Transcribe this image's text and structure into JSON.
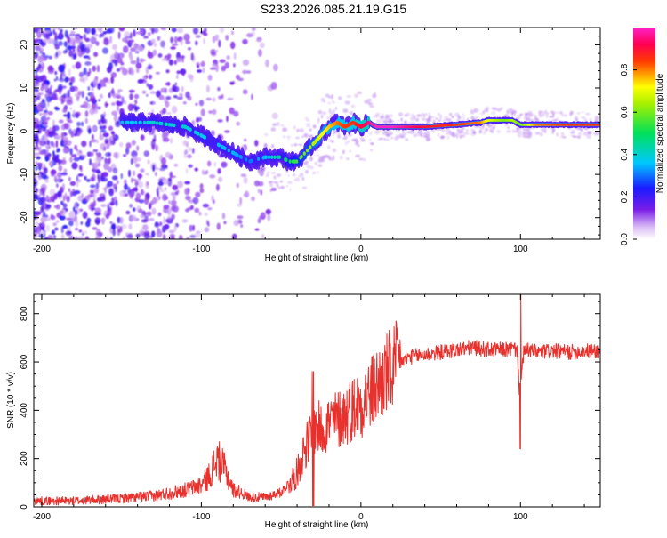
{
  "colors": {
    "snr_line": "#e8302c",
    "frame": "#000000",
    "background": "#ffffff"
  },
  "chart_data": [
    {
      "type": "heatmap",
      "title": "S233.2026.085.21.19.G15",
      "xlabel": "Height of straight line (km)",
      "ylabel": "Frequency (Hz)",
      "xlim": [
        -205,
        150
      ],
      "ylim": [
        -25,
        24
      ],
      "xticks": [
        -200,
        -100,
        0,
        100
      ],
      "yticks": [
        20,
        10,
        0,
        -10,
        -20
      ],
      "colorbar": {
        "label": "Normalized spectral amplitude",
        "range": [
          0,
          1
        ],
        "ticks": [
          "0.0",
          "0.2",
          "0.4",
          "0.6",
          "0.8"
        ],
        "colormap": "rainbow (violet → blue → cyan → green → yellow → red → magenta)"
      },
      "ridge": {
        "description": "dominant frequency ridge vs height",
        "x": [
          -150,
          -130,
          -110,
          -100,
          -90,
          -80,
          -70,
          -60,
          -50,
          -45,
          -40,
          -35,
          -30,
          -25,
          -20,
          -15,
          -10,
          -5,
          0,
          5,
          10,
          20,
          40,
          60,
          75,
          80,
          90,
          95,
          100,
          110,
          130,
          150
        ],
        "freq": [
          2,
          2,
          1,
          -1,
          -3,
          -5,
          -7,
          -6,
          -6,
          -7,
          -7,
          -5,
          -3,
          -1,
          1,
          2,
          1,
          2,
          1,
          2,
          1,
          1,
          1,
          1.5,
          2,
          2.5,
          2.5,
          2.5,
          1.5,
          1.5,
          1.5,
          1.5
        ],
        "amplitude": [
          0.35,
          0.4,
          0.4,
          0.38,
          0.35,
          0.35,
          0.3,
          0.35,
          0.45,
          0.5,
          0.55,
          0.6,
          0.65,
          0.7,
          0.75,
          0.8,
          0.85,
          0.85,
          0.9,
          0.95,
          1.0,
          1.0,
          0.9,
          0.85,
          0.8,
          0.7,
          0.6,
          0.65,
          0.6,
          0.8,
          0.85,
          0.85
        ]
      }
    },
    {
      "type": "line",
      "xlabel": "Height of straight line (km)",
      "ylabel": "SNR (10 * v/v)",
      "xlim": [
        -205,
        150
      ],
      "ylim": [
        0,
        880
      ],
      "xticks": [
        -200,
        -100,
        0,
        100
      ],
      "yticks": [
        0,
        200,
        400,
        600,
        800
      ],
      "series": [
        {
          "name": "SNR",
          "x": [
            -205,
            -180,
            -150,
            -130,
            -110,
            -100,
            -95,
            -90,
            -85,
            -80,
            -75,
            -70,
            -60,
            -50,
            -40,
            -35,
            -30,
            -28,
            -25,
            -20,
            -15,
            -10,
            -5,
            0,
            5,
            10,
            15,
            20,
            25,
            30,
            40,
            50,
            60,
            70,
            80,
            90,
            95,
            98,
            99,
            100,
            101,
            102,
            105,
            110,
            120,
            130,
            140,
            150
          ],
          "y": [
            25,
            25,
            35,
            45,
            70,
            90,
            130,
            200,
            150,
            70,
            60,
            40,
            40,
            60,
            140,
            250,
            300,
            330,
            320,
            350,
            360,
            380,
            410,
            430,
            460,
            500,
            540,
            570,
            600,
            620,
            630,
            640,
            650,
            660,
            650,
            650,
            655,
            650,
            500,
            480,
            560,
            640,
            650,
            640,
            645,
            640,
            645,
            645
          ]
        }
      ]
    }
  ]
}
